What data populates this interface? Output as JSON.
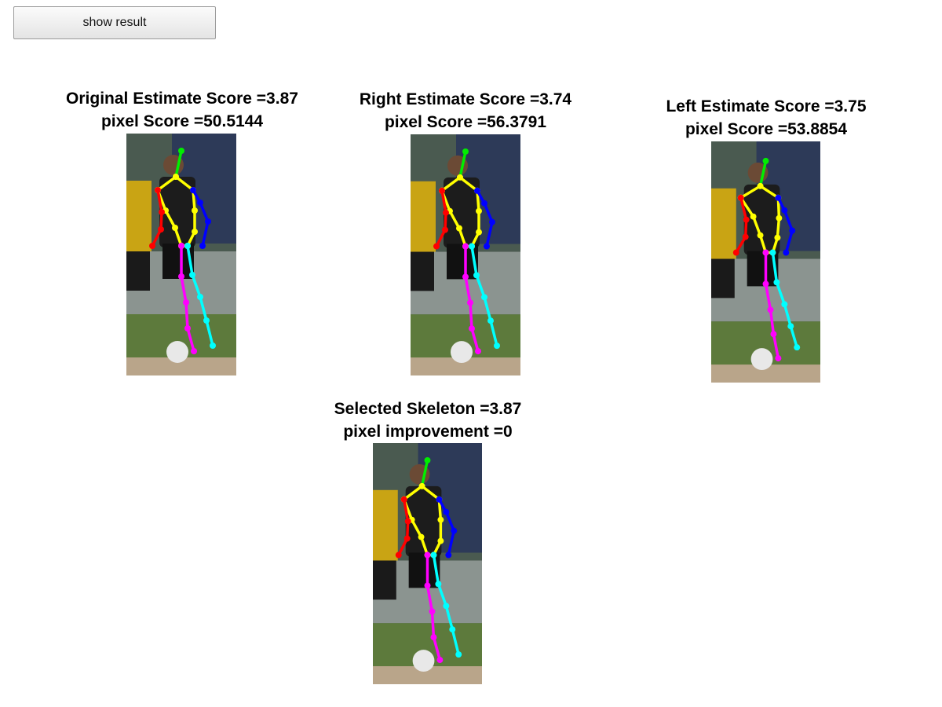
{
  "toolbar": {
    "show_result_label": "show result"
  },
  "panels": {
    "original": {
      "line1": "Original Estimate Score =3.87",
      "line2": "pixel Score =50.5144"
    },
    "right": {
      "line1": "Right Estimate Score =3.74",
      "line2": "pixel Score =56.3791"
    },
    "left": {
      "line1": "Left Estimate Score =3.75",
      "line2": "pixel Score =53.8854"
    },
    "selected": {
      "line1": "Selected Skeleton =3.87",
      "line2": "pixel improvement =0"
    }
  },
  "colors": {
    "head": "#00ee00",
    "torso": "#ffff00",
    "left_arm": "#ff0000",
    "right_arm": "#0000ff",
    "left_leg": "#ff00ff",
    "right_leg": "#00ffff"
  }
}
